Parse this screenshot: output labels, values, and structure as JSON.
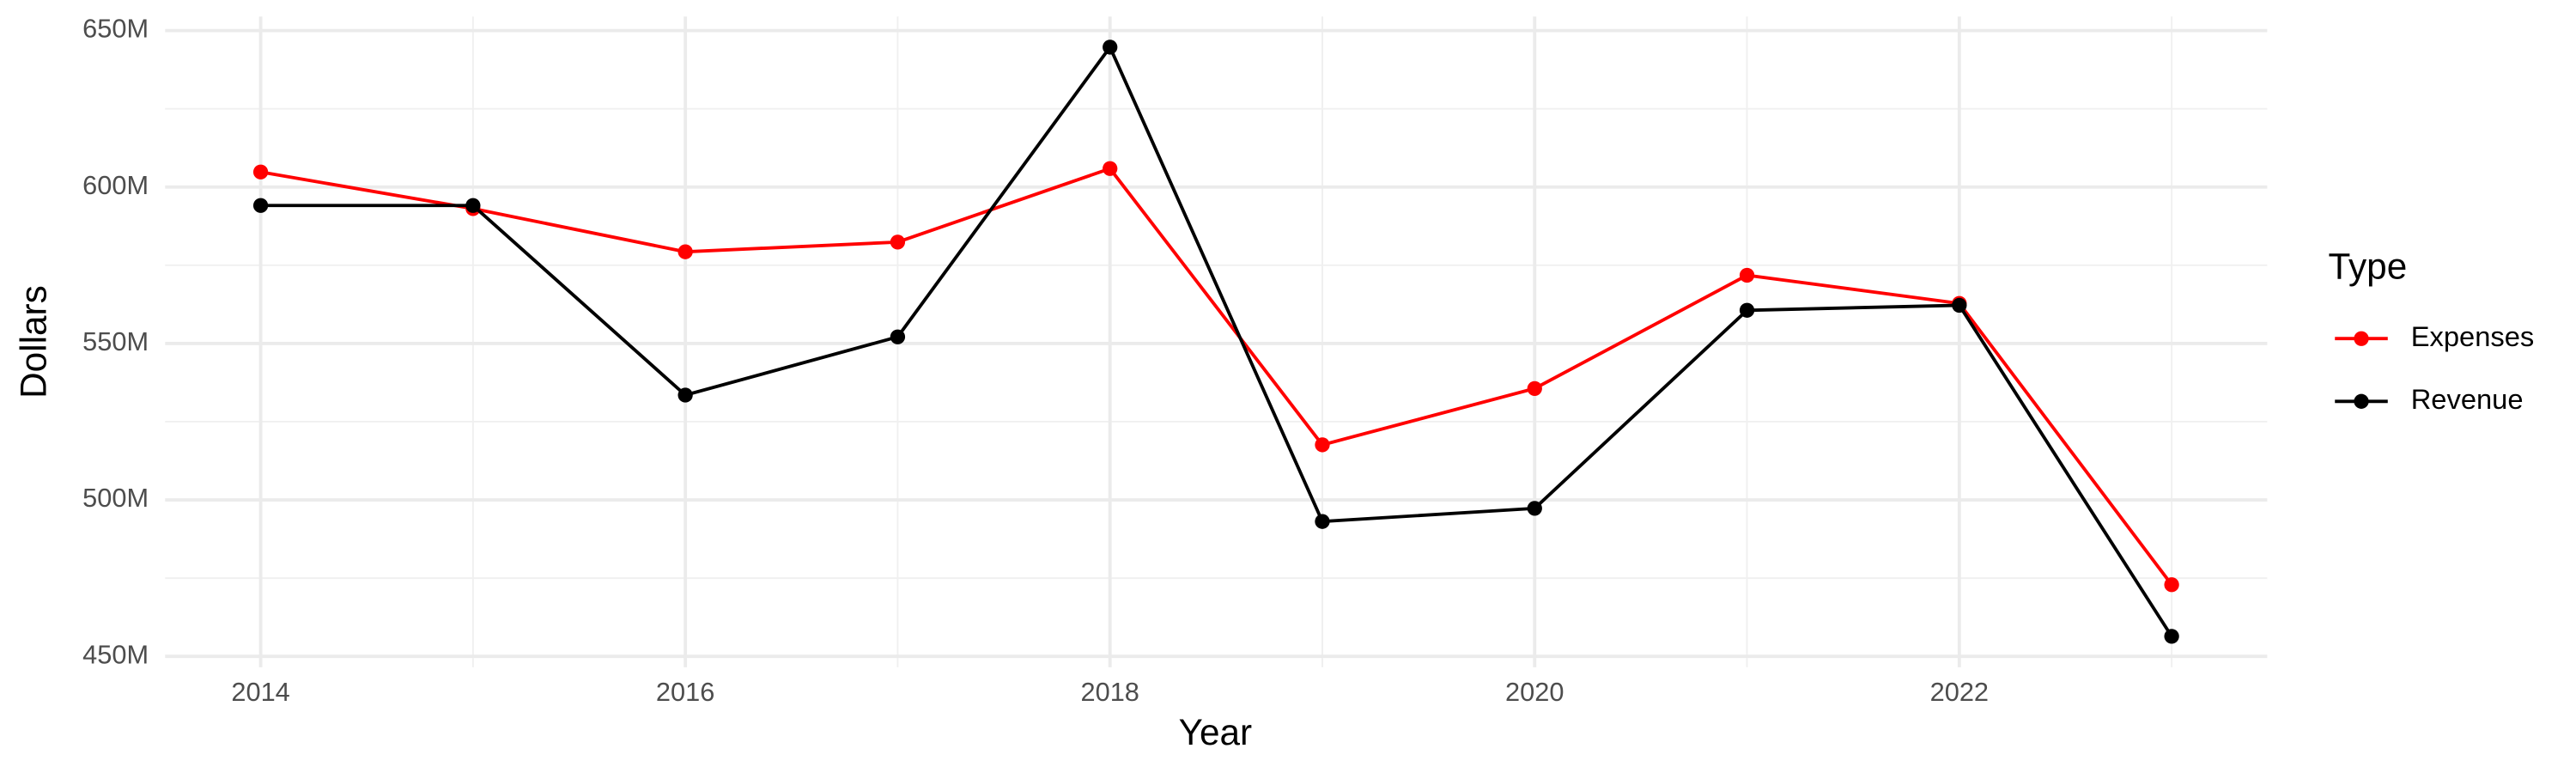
{
  "chart_data": {
    "type": "line",
    "x_label": "Year",
    "y_label": "Dollars",
    "legend_title": "Type",
    "legend_position": "right",
    "x": [
      2014,
      2015,
      2016,
      2017,
      2018,
      2019,
      2020,
      2021,
      2022,
      2023
    ],
    "series": [
      {
        "name": "Expenses",
        "color": "#ff0000",
        "values": [
          604800000,
          593100000,
          579300000,
          582400000,
          605900000,
          517600000,
          535600000,
          571800000,
          562800000,
          472900000
        ]
      },
      {
        "name": "Revenue",
        "color": "#000000",
        "values": [
          594100000,
          594100000,
          533500000,
          552100000,
          644700000,
          493100000,
          497300000,
          560600000,
          562200000,
          456400000
        ]
      }
    ],
    "xlim": [
      2013.55,
      2023.45
    ],
    "xticks": [
      2014,
      2016,
      2018,
      2020,
      2022
    ],
    "ylim": [
      446500000,
      654500000
    ],
    "yticks": [
      {
        "value": 450000000,
        "label": "450M"
      },
      {
        "value": 500000000,
        "label": "500M"
      },
      {
        "value": 550000000,
        "label": "550M"
      },
      {
        "value": 600000000,
        "label": "600M"
      },
      {
        "value": 650000000,
        "label": "650M"
      }
    ],
    "grid": true
  }
}
